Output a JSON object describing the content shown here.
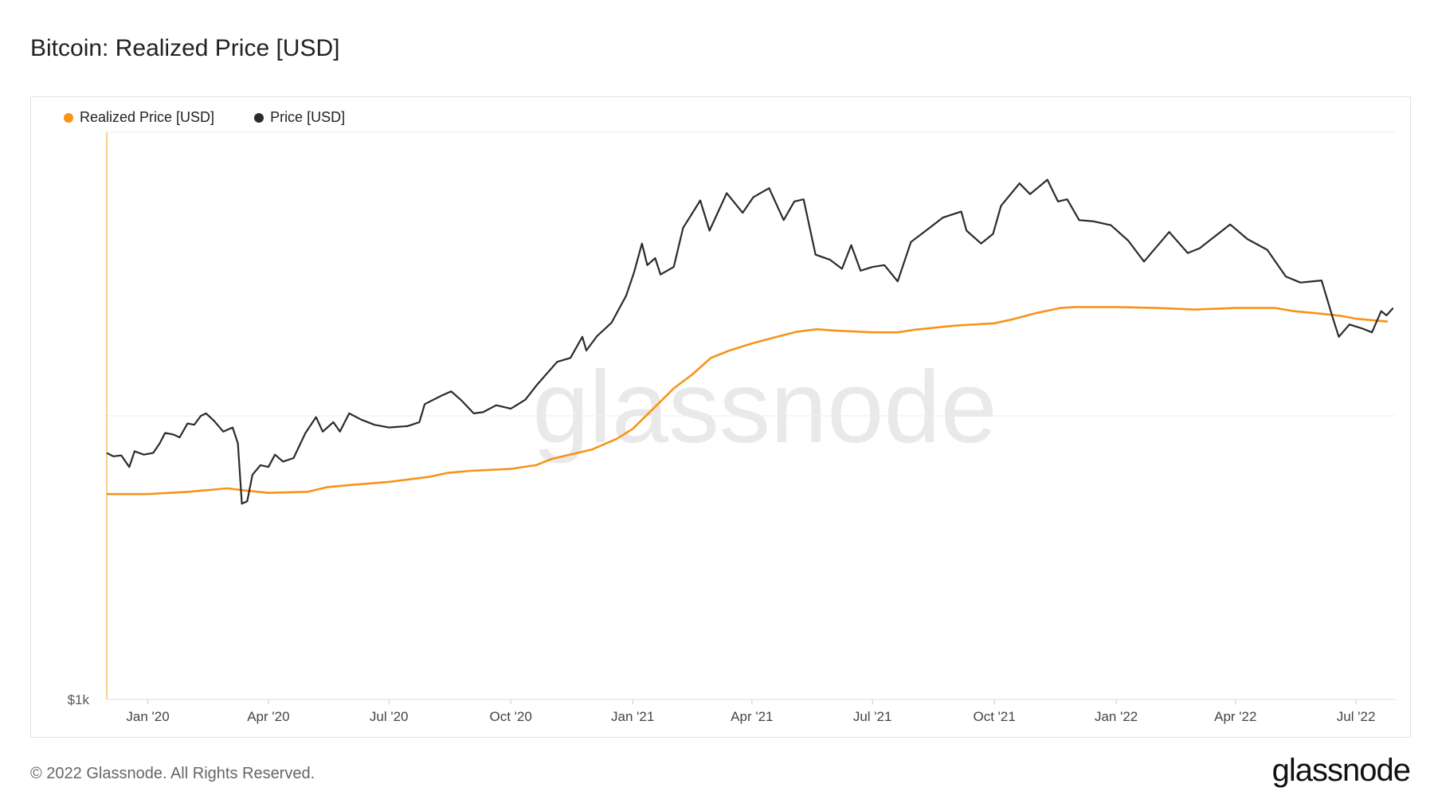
{
  "title": "Bitcoin: Realized Price [USD]",
  "footer": "© 2022 Glassnode. All Rights Reserved.",
  "brand": "glassnode",
  "watermark": "glassnode",
  "colors": {
    "realized": "#f7931a",
    "price": "#2b2b2b",
    "grid": "#ececec",
    "axis": "#f3c56b"
  },
  "chart_data": {
    "type": "line",
    "xlabel": "",
    "ylabel": "",
    "ylog": true,
    "ylim": [
      1000,
      100000
    ],
    "xlim": [
      "2019-12-01",
      "2022-07-31"
    ],
    "ytick_labels": [
      {
        "value": 1000,
        "label": "$1k"
      }
    ],
    "grid_values": [
      10000,
      100000
    ],
    "xticks": [
      {
        "date": "2020-01-01",
        "label": "Jan '20"
      },
      {
        "date": "2020-04-01",
        "label": "Apr '20"
      },
      {
        "date": "2020-07-01",
        "label": "Jul '20"
      },
      {
        "date": "2020-10-01",
        "label": "Oct '20"
      },
      {
        "date": "2021-01-01",
        "label": "Jan '21"
      },
      {
        "date": "2021-04-01",
        "label": "Apr '21"
      },
      {
        "date": "2021-07-01",
        "label": "Jul '21"
      },
      {
        "date": "2021-10-01",
        "label": "Oct '21"
      },
      {
        "date": "2022-01-01",
        "label": "Jan '22"
      },
      {
        "date": "2022-04-01",
        "label": "Apr '22"
      },
      {
        "date": "2022-07-01",
        "label": "Jul '22"
      }
    ],
    "legend_position": "top-left",
    "series": [
      {
        "name": "Realized Price [USD]",
        "points": [
          [
            "2019-12-01",
            5300
          ],
          [
            "2020-01-01",
            5300
          ],
          [
            "2020-02-01",
            5400
          ],
          [
            "2020-03-01",
            5550
          ],
          [
            "2020-03-15",
            5450
          ],
          [
            "2020-04-01",
            5350
          ],
          [
            "2020-05-01",
            5400
          ],
          [
            "2020-05-15",
            5600
          ],
          [
            "2020-06-01",
            5700
          ],
          [
            "2020-07-01",
            5850
          ],
          [
            "2020-08-01",
            6100
          ],
          [
            "2020-08-15",
            6300
          ],
          [
            "2020-09-01",
            6400
          ],
          [
            "2020-10-01",
            6500
          ],
          [
            "2020-10-20",
            6700
          ],
          [
            "2020-11-01",
            7050
          ],
          [
            "2020-12-01",
            7600
          ],
          [
            "2020-12-20",
            8300
          ],
          [
            "2021-01-01",
            9000
          ],
          [
            "2021-01-20",
            11000
          ],
          [
            "2021-02-01",
            12500
          ],
          [
            "2021-02-15",
            14000
          ],
          [
            "2021-03-01",
            16000
          ],
          [
            "2021-03-15",
            17000
          ],
          [
            "2021-04-01",
            18000
          ],
          [
            "2021-04-20",
            19000
          ],
          [
            "2021-05-05",
            19800
          ],
          [
            "2021-05-20",
            20200
          ],
          [
            "2021-06-01",
            20000
          ],
          [
            "2021-07-01",
            19700
          ],
          [
            "2021-07-20",
            19700
          ],
          [
            "2021-08-01",
            20100
          ],
          [
            "2021-09-01",
            20800
          ],
          [
            "2021-10-01",
            21200
          ],
          [
            "2021-10-15",
            21900
          ],
          [
            "2021-11-01",
            23000
          ],
          [
            "2021-11-20",
            24000
          ],
          [
            "2021-12-01",
            24200
          ],
          [
            "2022-01-01",
            24200
          ],
          [
            "2022-02-01",
            24000
          ],
          [
            "2022-03-01",
            23700
          ],
          [
            "2022-04-01",
            24000
          ],
          [
            "2022-05-01",
            24000
          ],
          [
            "2022-05-15",
            23400
          ],
          [
            "2022-06-01",
            23000
          ],
          [
            "2022-06-20",
            22500
          ],
          [
            "2022-07-01",
            22000
          ],
          [
            "2022-07-25",
            21500
          ]
        ]
      },
      {
        "name": "Price [USD]",
        "points": [
          [
            "2019-12-01",
            7400
          ],
          [
            "2019-12-06",
            7200
          ],
          [
            "2019-12-12",
            7250
          ],
          [
            "2019-12-18",
            6600
          ],
          [
            "2019-12-22",
            7500
          ],
          [
            "2019-12-29",
            7300
          ],
          [
            "2020-01-05",
            7400
          ],
          [
            "2020-01-10",
            8000
          ],
          [
            "2020-01-14",
            8700
          ],
          [
            "2020-01-20",
            8600
          ],
          [
            "2020-01-25",
            8400
          ],
          [
            "2020-01-31",
            9400
          ],
          [
            "2020-02-05",
            9300
          ],
          [
            "2020-02-10",
            10000
          ],
          [
            "2020-02-14",
            10200
          ],
          [
            "2020-02-20",
            9600
          ],
          [
            "2020-02-27",
            8800
          ],
          [
            "2020-03-05",
            9100
          ],
          [
            "2020-03-09",
            8000
          ],
          [
            "2020-03-12",
            4900
          ],
          [
            "2020-03-16",
            5000
          ],
          [
            "2020-03-20",
            6200
          ],
          [
            "2020-03-26",
            6700
          ],
          [
            "2020-04-01",
            6600
          ],
          [
            "2020-04-06",
            7300
          ],
          [
            "2020-04-12",
            6900
          ],
          [
            "2020-04-20",
            7100
          ],
          [
            "2020-04-29",
            8700
          ],
          [
            "2020-05-07",
            9900
          ],
          [
            "2020-05-12",
            8800
          ],
          [
            "2020-05-20",
            9500
          ],
          [
            "2020-05-25",
            8800
          ],
          [
            "2020-06-01",
            10200
          ],
          [
            "2020-06-10",
            9700
          ],
          [
            "2020-06-20",
            9300
          ],
          [
            "2020-07-01",
            9100
          ],
          [
            "2020-07-15",
            9200
          ],
          [
            "2020-07-24",
            9500
          ],
          [
            "2020-07-28",
            11000
          ],
          [
            "2020-08-10",
            11800
          ],
          [
            "2020-08-17",
            12200
          ],
          [
            "2020-08-25",
            11300
          ],
          [
            "2020-09-03",
            10200
          ],
          [
            "2020-09-10",
            10300
          ],
          [
            "2020-09-20",
            10900
          ],
          [
            "2020-10-01",
            10600
          ],
          [
            "2020-10-12",
            11400
          ],
          [
            "2020-10-21",
            12900
          ],
          [
            "2020-11-05",
            15500
          ],
          [
            "2020-11-15",
            16000
          ],
          [
            "2020-11-24",
            19000
          ],
          [
            "2020-11-27",
            17000
          ],
          [
            "2020-12-05",
            19100
          ],
          [
            "2020-12-16",
            21300
          ],
          [
            "2020-12-27",
            26500
          ],
          [
            "2021-01-02",
            32000
          ],
          [
            "2021-01-08",
            40500
          ],
          [
            "2021-01-12",
            34000
          ],
          [
            "2021-01-18",
            36000
          ],
          [
            "2021-01-22",
            31500
          ],
          [
            "2021-02-01",
            33500
          ],
          [
            "2021-02-08",
            46000
          ],
          [
            "2021-02-21",
            57500
          ],
          [
            "2021-02-28",
            45000
          ],
          [
            "2021-03-13",
            61000
          ],
          [
            "2021-03-25",
            52000
          ],
          [
            "2021-04-02",
            59000
          ],
          [
            "2021-04-14",
            63500
          ],
          [
            "2021-04-25",
            49000
          ],
          [
            "2021-05-03",
            57000
          ],
          [
            "2021-05-10",
            58000
          ],
          [
            "2021-05-19",
            37000
          ],
          [
            "2021-05-30",
            35500
          ],
          [
            "2021-06-08",
            33000
          ],
          [
            "2021-06-15",
            40000
          ],
          [
            "2021-06-22",
            32500
          ],
          [
            "2021-07-01",
            33500
          ],
          [
            "2021-07-10",
            34000
          ],
          [
            "2021-07-20",
            29800
          ],
          [
            "2021-07-30",
            41000
          ],
          [
            "2021-08-13",
            46000
          ],
          [
            "2021-08-23",
            50000
          ],
          [
            "2021-09-06",
            52500
          ],
          [
            "2021-09-10",
            45000
          ],
          [
            "2021-09-21",
            40500
          ],
          [
            "2021-09-30",
            43800
          ],
          [
            "2021-10-06",
            55000
          ],
          [
            "2021-10-20",
            66000
          ],
          [
            "2021-10-28",
            60500
          ],
          [
            "2021-11-10",
            68000
          ],
          [
            "2021-11-18",
            57000
          ],
          [
            "2021-11-25",
            58000
          ],
          [
            "2021-12-04",
            49000
          ],
          [
            "2021-12-15",
            48500
          ],
          [
            "2021-12-28",
            47000
          ],
          [
            "2022-01-10",
            41500
          ],
          [
            "2022-01-22",
            35000
          ],
          [
            "2022-02-10",
            44500
          ],
          [
            "2022-02-24",
            37500
          ],
          [
            "2022-03-05",
            39000
          ],
          [
            "2022-03-28",
            47300
          ],
          [
            "2022-04-10",
            42000
          ],
          [
            "2022-04-25",
            38500
          ],
          [
            "2022-05-09",
            31000
          ],
          [
            "2022-05-20",
            29500
          ],
          [
            "2022-06-05",
            30000
          ],
          [
            "2022-06-13",
            22500
          ],
          [
            "2022-06-18",
            19000
          ],
          [
            "2022-06-26",
            21000
          ],
          [
            "2022-07-06",
            20300
          ],
          [
            "2022-07-13",
            19700
          ],
          [
            "2022-07-20",
            23400
          ],
          [
            "2022-07-24",
            22600
          ],
          [
            "2022-07-29",
            24000
          ]
        ]
      }
    ]
  }
}
